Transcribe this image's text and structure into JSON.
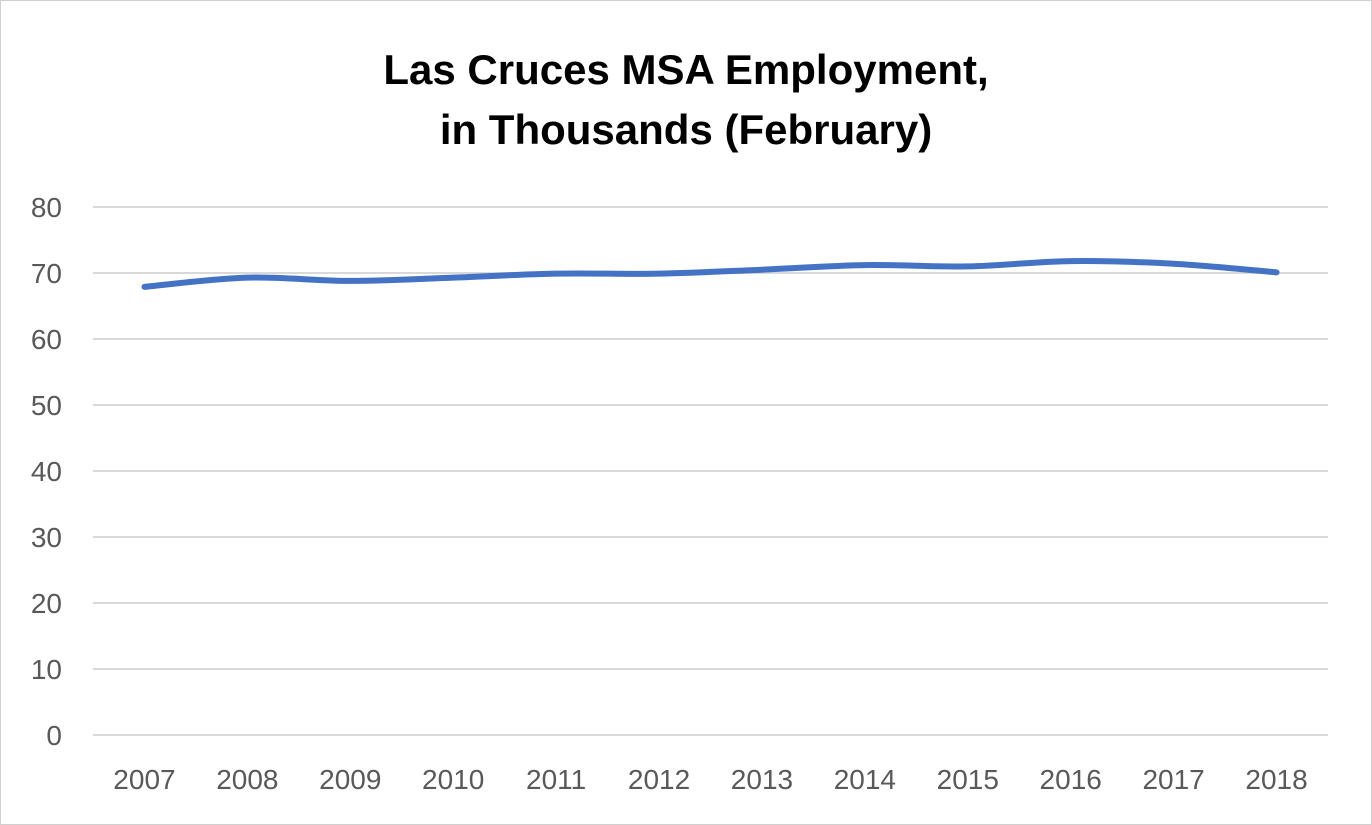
{
  "chart_data": {
    "type": "line",
    "title_lines": [
      "Las Cruces MSA Employment,",
      "in Thousands (February)"
    ],
    "xlabel": "",
    "ylabel": "",
    "categories": [
      "2007",
      "2008",
      "2009",
      "2010",
      "2011",
      "2012",
      "2013",
      "2014",
      "2015",
      "2016",
      "2017",
      "2018"
    ],
    "series": [
      {
        "values": [
          67.9,
          69.3,
          68.8,
          69.3,
          69.9,
          69.9,
          70.5,
          71.2,
          71.0,
          71.8,
          71.4,
          70.1
        ]
      }
    ],
    "ylim": [
      0,
      80
    ],
    "yticks": [
      0,
      10,
      20,
      30,
      40,
      50,
      60,
      70,
      80
    ],
    "grid": true,
    "legend": "none",
    "colors": {
      "line": "#4472C4",
      "grid": "#d9d9d9",
      "tick_text": "#595959"
    }
  }
}
